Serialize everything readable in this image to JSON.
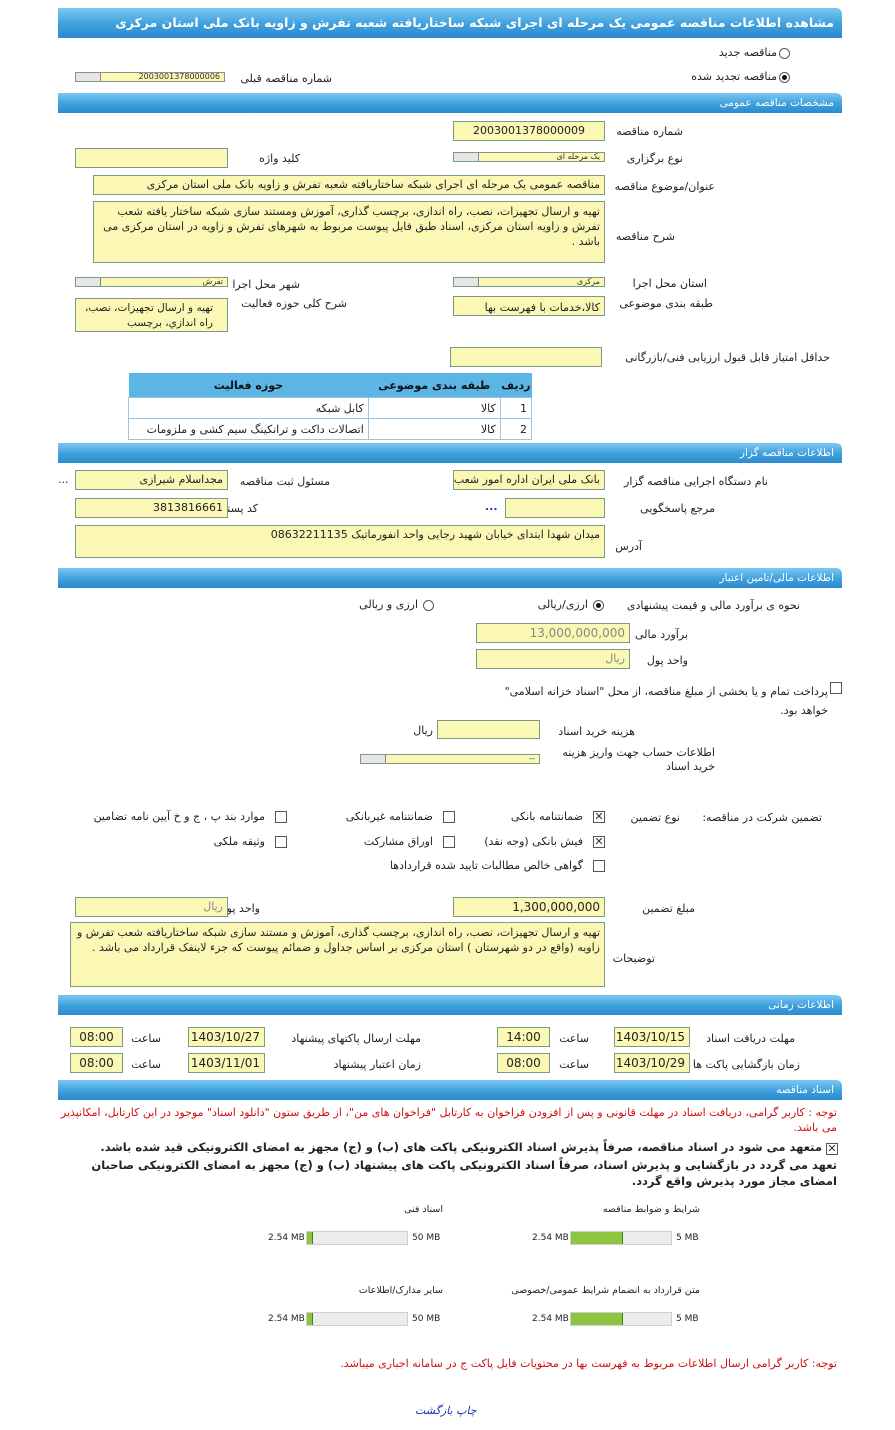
{
  "title": "مشاهده اطلاعات مناقصه عمومی یک مرحله ای اجرای شبکه ساختاریافته شعبه تفرش و زاویه بانک ملی استان مرکزی",
  "top": {
    "new_label": "مناقصه جدید",
    "renewed_label": "مناقصه تجدید شده",
    "renewed_selected": true,
    "prev_number_label": "شماره مناقصه قبلی",
    "prev_number": "2003001378000006"
  },
  "general": {
    "header": "مشخصات مناقصه عمومی",
    "number_label": "شماره مناقصه",
    "number": "2003001378000009",
    "type_label": "نوع برگزاری",
    "type": "یک مرحله ای",
    "keyword_label": "کلید واژه",
    "keyword": "",
    "subject_label": "عنوان/موضوع مناقصه",
    "subject": "مناقصه عمومی یک مرحله ای اجرای شبکه ساختاریافته شعبه تفرش و زاویه بانک ملی استان مرکزی",
    "desc_label": "شرح مناقصه",
    "desc": "تهیه و ارسال تجهیزات، نصب، راه اندازی، برچسب گذاری، آموزش ومستند سازی شبکه ساختار یافته شعب تفرش و زاویه استان مرکزی، اسناد طبق فایل پیوست مربوط به شهرهای تفرش و زاویه در استان مرکزی می باشد .",
    "province_label": "استان محل اجرا",
    "province": "مرکزی",
    "city_label": "شهر محل اجرا",
    "city": "تفرش",
    "category_label": "طبقه بندی موضوعی",
    "category": "کالا،خدمات با فهرست بها",
    "activity_desc_label": "شرح کلی حوزه فعالیت",
    "activity_desc": "تهیه و ارسال تجهیزات، نصب، راه اندازي، برچسب",
    "min_score_label": "حداقل امتیاز قابل قبول ارزیابی فنی/بازرگانی",
    "min_score": "",
    "table": {
      "headers": [
        "ردیف",
        "طبقه بندی موضوعی",
        "حوزه فعالیت"
      ],
      "rows": [
        [
          "1",
          "کالا",
          "کابل شبکه"
        ],
        [
          "2",
          "کالا",
          "اتصالات داکت و ترانکینگ سیم کشی و ملزومات"
        ]
      ]
    }
  },
  "organizer": {
    "header": "اطلاعات مناقصه گزار",
    "org_label": "نام دستگاه اجرایی مناقصه گزار",
    "org": "بانک ملی ایران اداره امور شعب",
    "registrar_label": "مسئول ثبت مناقصه",
    "registrar": "مجداسلام شیرازی",
    "more": "...",
    "ref_label": "مرجع پاسخگویی",
    "ref": "",
    "ref_more": "...",
    "postal_label": "کد پستی",
    "postal": "3813816661",
    "address_label": "آدرس",
    "address": "میدان شهدا ابتدای خیابان شهید رجایی واحد انفورماتیک 08632211135"
  },
  "finance": {
    "header": "اطلاعات مالی/تامین اعتبار",
    "method_label": "نحوه ی برآورد مالی و قیمت پیشنهادی",
    "opt1": "ارزی/ریالی",
    "opt2": "ارزی و ریالی",
    "estimate_label": "برآورد مالی",
    "estimate": "13,000,000,000",
    "currency_label": "واحد پول",
    "currency": "ریال",
    "treasury_text": "پرداخت تمام و یا بخشی از مبلغ مناقصه، از محل \"اسناد خزانه اسلامی\" خواهد بود.",
    "doc_fee_label": "هزینه خرید اسناد",
    "doc_fee": "",
    "doc_fee_unit": "ریال",
    "account_label": "اطلاعات حساب جهت واریز هزینه خرید اسناد",
    "account": "--"
  },
  "guarantee": {
    "label": "تضمین شرکت در مناقصه:",
    "type_label": "نوع تضمین",
    "options": [
      {
        "label": "ضمانتنامه بانکی",
        "checked": true
      },
      {
        "label": "ضمانتنامه غیربانکی",
        "checked": false
      },
      {
        "label": "موارد بند پ ، ج و خ آیین نامه تضامین",
        "checked": false
      },
      {
        "label": "فیش بانکی (وجه نقد)",
        "checked": true
      },
      {
        "label": "اوراق مشارکت",
        "checked": false
      },
      {
        "label": "وثیقه ملکی",
        "checked": false
      },
      {
        "label": "گواهی خالص مطالبات تایید شده قراردادها",
        "checked": false
      }
    ],
    "amount_label": "مبلغ تضمین",
    "amount": "1,300,000,000",
    "currency_label": "واحد پول",
    "currency": "ریال",
    "notes_label": "توضیحات",
    "notes": "تهیه و ارسال تجهیزات، نصب، راه اندازی، برچسب گذاری، آموزش و مستند سازی شبکه ساختاریافته شعب تفرش و زاویه (واقع در دو شهرستان ) استان مرکزی بر اساس جداول و ضمائم پیوست که جزء لاینفک قرارداد می باشد ."
  },
  "timing": {
    "header": "اطلاعات زمانی",
    "time_label": "ساعت",
    "doc_receive_label": "مهلت دریافت اسناد",
    "doc_receive_date": "1403/10/15",
    "doc_receive_time": "14:00",
    "submit_label": "مهلت ارسال پاکتهای پیشنهاد",
    "submit_date": "1403/10/27",
    "submit_time": "08:00",
    "open_label": "زمان بازگشایی پاکت ها",
    "open_date": "1403/10/29",
    "open_time": "08:00",
    "validity_label": "زمان اعتبار پیشنهاد",
    "validity_date": "1403/11/01",
    "validity_time": "08:00"
  },
  "docs": {
    "header": "اسناد مناقصه",
    "note": "توجه : کاربر گرامی، دریافت اسناد در مهلت قانونی و پس از افزودن فراخوان به کارتابل \"فراخوان های من\"، از طریق ستون \"دانلود اسناد\" موجود در این کارتابل، امکانپذیر می باشد.",
    "commit1": "متعهد می شود در اسناد مناقصه، صرفاً پذیرش اسناد الکترونیکی پاکت های (ب) و (ج) مجهز به امضای الکترونیکی قید شده باشد.",
    "commit2": "تعهد می گردد در بازگشایی و پذیرش اسناد، صرفاً اسناد الکترونیکی پاکت های پیشنهاد (ب) و (ج) مجهز به امضای الکترونیکی صاحبان امضای مجاز مورد پذیرش واقع گردد.",
    "files": [
      {
        "label": "شرایط و ضوابط مناقصه",
        "used": "2.54 MB",
        "max": "5 MB",
        "fraction": 0.508
      },
      {
        "label": "اسناد فنی",
        "used": "2.54 MB",
        "max": "50 MB",
        "fraction": 0.051
      },
      {
        "label": "متن قرارداد به انضمام شرایط عمومی/خصوصی",
        "used": "2.54 MB",
        "max": "5 MB",
        "fraction": 0.508
      },
      {
        "label": "سایر مدارک/اطلاعات",
        "used": "2.54 MB",
        "max": "50 MB",
        "fraction": 0.051
      }
    ],
    "note2": "توجه: کاربر گرامی ارسال اطلاعات مربوط به فهرست بها در محتویات فایل پاکت ج در سامانه اجباری میباشد."
  },
  "footer": {
    "print": "چاپ",
    "back": "بازگشت"
  }
}
